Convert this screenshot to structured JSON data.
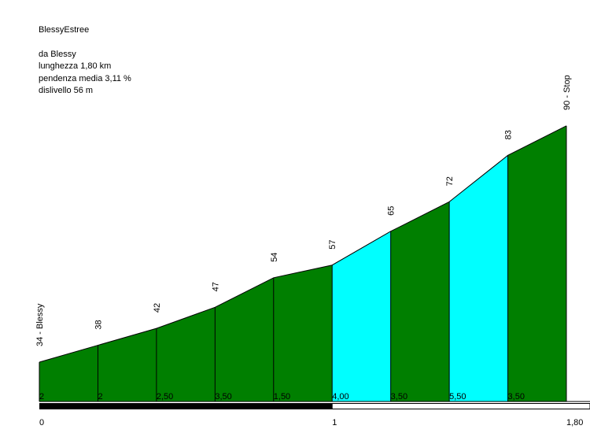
{
  "info": {
    "title": "BlessyEstree",
    "from": "da Blessy",
    "length": "lunghezza 1,80 km",
    "avg_gradient": "pendenza media 3,11 %",
    "elevation_gain": "dislivello 56 m"
  },
  "colors": {
    "normal": "#007F00",
    "steep": "#00FFFF",
    "outline": "#000000",
    "scale_dark": "#000000",
    "scale_light": "#ffffff"
  },
  "chart_data": {
    "type": "area",
    "title": "BlessyEstree",
    "x": [
      0,
      0.2,
      0.4,
      0.6,
      0.8,
      1.0,
      1.2,
      1.4,
      1.6,
      1.8
    ],
    "elevations": [
      34,
      38,
      42,
      47,
      54,
      57,
      65,
      72,
      83,
      90
    ],
    "point_labels": [
      "34 - Blessy",
      "38",
      "42",
      "47",
      "54",
      "57",
      "65",
      "72",
      "83",
      "90 - Stop"
    ],
    "segment_gradients": [
      "2",
      "2",
      "2,50",
      "3,50",
      "1,50",
      "4,00",
      "3,50",
      "5,50",
      "3,50"
    ],
    "segment_colors": [
      "normal",
      "normal",
      "normal",
      "normal",
      "normal",
      "steep",
      "normal",
      "steep",
      "normal"
    ],
    "x_tick_values": [
      0,
      1,
      1.8
    ],
    "x_tick_labels": [
      "0",
      "1",
      "1,80"
    ],
    "xlim": [
      0,
      1.8
    ],
    "ylim": [
      0,
      90
    ],
    "grid": false,
    "legend": "none"
  }
}
